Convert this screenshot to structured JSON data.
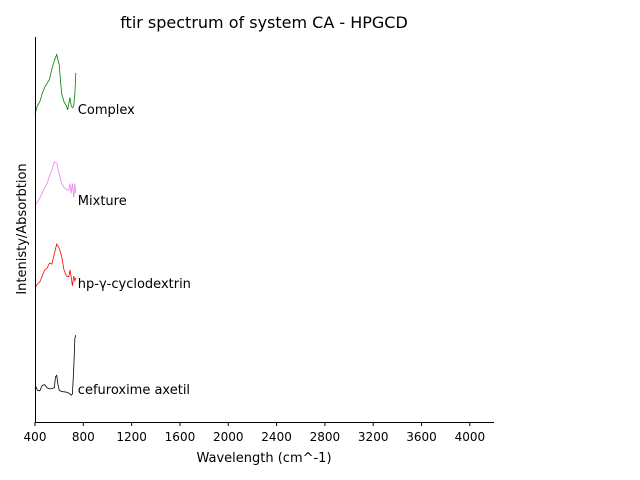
{
  "chart_data": {
    "type": "line",
    "title": "ftir spectrum of system CA - HPGCD",
    "xlabel": "Wavelength (cm^-1)",
    "ylabel": "Intenisty/Absorbtion",
    "xlim": [
      400,
      4200
    ],
    "xticks": [
      400,
      800,
      1200,
      1600,
      2000,
      2400,
      2800,
      3200,
      3600,
      4000
    ],
    "y_ticks_visible": false,
    "grid": false,
    "legend": "none; each series labelled to the right of its trace end",
    "series": [
      {
        "name": "cefuroxime axetil",
        "color": "#000000",
        "x": [
          400,
          410,
          420,
          440,
          460,
          480,
          500,
          520,
          540,
          560,
          570,
          580,
          590,
          600,
          620,
          640,
          660,
          680,
          700,
          710,
          720,
          730,
          738
        ],
        "y": [
          0.16,
          0.22,
          0.12,
          0.1,
          0.28,
          0.3,
          0.2,
          0.16,
          0.18,
          0.2,
          0.55,
          0.6,
          0.3,
          0.12,
          0.08,
          0.07,
          0.06,
          0.03,
          -0.04,
          0.0,
          0.8,
          1.8,
          1.9
        ]
      },
      {
        "name": "hp-γ-cyclodextrin",
        "color": "#ff0000",
        "x": [
          400,
          420,
          440,
          460,
          480,
          500,
          520,
          540,
          560,
          580,
          600,
          620,
          640,
          660,
          680,
          690,
          700,
          710,
          720,
          730,
          738
        ],
        "y": [
          0.0,
          0.1,
          0.15,
          0.3,
          0.45,
          0.5,
          0.62,
          0.6,
          0.85,
          1.1,
          1.0,
          0.8,
          0.45,
          0.3,
          0.28,
          0.45,
          0.28,
          0.05,
          0.3,
          0.18,
          0.25
        ]
      },
      {
        "name": "Mixture",
        "color": "#ee82ee",
        "x": [
          400,
          420,
          440,
          460,
          480,
          500,
          520,
          540,
          560,
          580,
          600,
          620,
          640,
          660,
          680,
          690,
          700,
          710,
          720,
          730,
          738
        ],
        "y": [
          0.0,
          0.08,
          0.18,
          0.3,
          0.45,
          0.55,
          0.75,
          0.9,
          1.1,
          1.08,
          0.8,
          0.55,
          0.45,
          0.4,
          0.38,
          0.55,
          0.3,
          0.55,
          0.2,
          0.55,
          0.3
        ]
      },
      {
        "name": "Complex",
        "color": "#008000",
        "x": [
          400,
          420,
          440,
          460,
          480,
          500,
          520,
          540,
          560,
          580,
          600,
          620,
          640,
          660,
          670,
          680,
          690,
          700,
          710,
          720,
          730,
          738
        ],
        "y": [
          0.0,
          0.2,
          0.3,
          0.5,
          0.65,
          0.75,
          0.85,
          1.1,
          1.3,
          1.45,
          1.2,
          0.5,
          0.3,
          0.2,
          0.1,
          0.25,
          0.4,
          0.2,
          0.15,
          0.2,
          0.5,
          1.0
        ]
      }
    ]
  }
}
